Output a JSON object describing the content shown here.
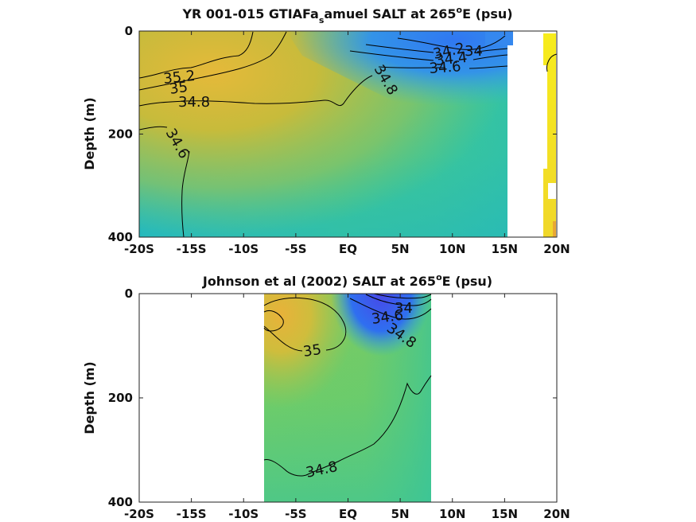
{
  "chart_data": [
    {
      "type": "heatmap",
      "title_main": "YR 001-015 GTIAFa",
      "title_sub": "s",
      "title_rest": "amuel SALT at 265",
      "title_sup": "o",
      "title_end": "E (psu)",
      "ylabel": "Depth (m)",
      "xlim": [
        -20,
        20
      ],
      "ylim": [
        400,
        0
      ],
      "x_ticks": [
        -20,
        -15,
        -10,
        -5,
        0,
        5,
        10,
        15,
        20
      ],
      "x_tick_labels": [
        "-20S",
        "-15S",
        "-10S",
        "-5S",
        "EQ",
        "5N",
        "10N",
        "15N",
        "20N"
      ],
      "y_ticks": [
        0,
        200,
        400
      ],
      "y_tick_labels": [
        "0",
        "200",
        "400"
      ],
      "contour_levels": [
        34.0,
        34.2,
        34.4,
        34.6,
        34.8,
        35.0,
        35.2
      ],
      "contour_labels": [
        "35.2",
        "35",
        "34.8",
        "34.6",
        "34.8",
        "34",
        "34.2",
        "34.4",
        "34.6"
      ],
      "data_extent_x": [
        -20,
        15
      ],
      "strip_x": [
        18.5,
        20
      ],
      "strip_color": "#f5e61d"
    },
    {
      "type": "heatmap",
      "title_main": "Johnson et al (2002) SALT at 265",
      "title_sup": "o",
      "title_end": "E (psu)",
      "ylabel": "Depth (m)",
      "xlim": [
        -20,
        20
      ],
      "ylim": [
        400,
        0
      ],
      "x_ticks": [
        -20,
        -15,
        -10,
        -5,
        0,
        5,
        10,
        15,
        20
      ],
      "x_tick_labels": [
        "-20S",
        "-15S",
        "-10S",
        "-5S",
        "EQ",
        "5N",
        "10N",
        "15N",
        "20N"
      ],
      "y_ticks": [
        0,
        200,
        400
      ],
      "y_tick_labels": [
        "0",
        "200",
        "400"
      ],
      "contour_levels": [
        34.4,
        34.6,
        34.8,
        35.0
      ],
      "contour_labels": [
        "35",
        "34",
        "34.6",
        "34.8",
        "34.8"
      ],
      "data_extent_x": [
        -8,
        8
      ]
    }
  ]
}
